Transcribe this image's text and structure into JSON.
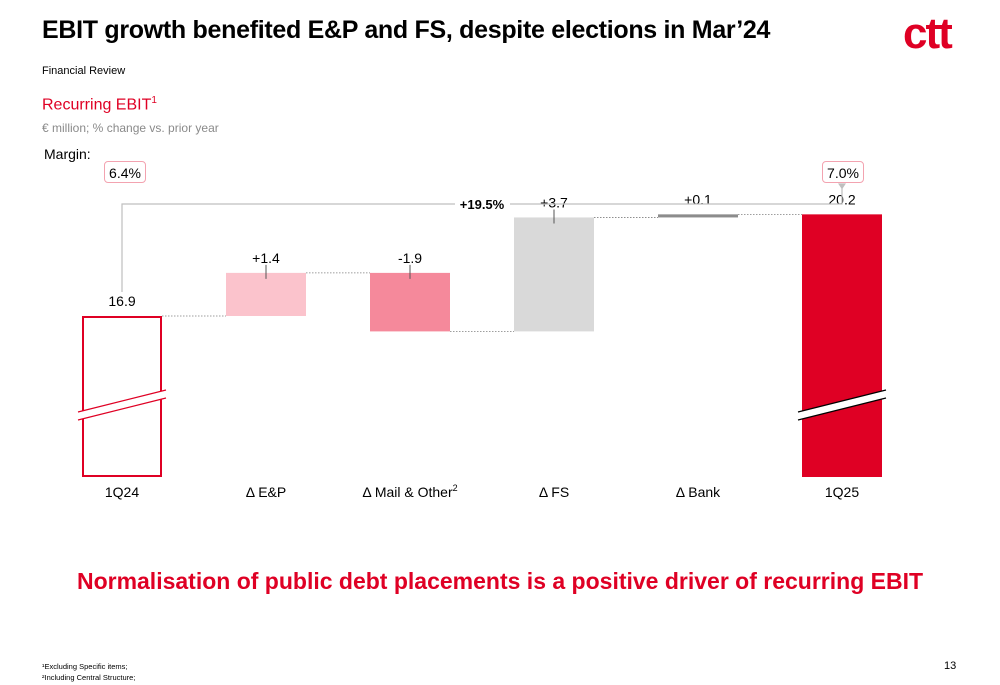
{
  "header": {
    "title": "EBIT growth benefited E&P and FS, despite elections in Mar’24",
    "logo_text": "ctt",
    "section_label": "Financial Review"
  },
  "chart_header": {
    "title": "Recurring EBIT",
    "title_sup": "1",
    "units": "€ million; % change vs. prior year",
    "margin_label": "Margin:",
    "margin_start": "6.4%",
    "margin_end": "7.0%",
    "growth_label": "+19.5%"
  },
  "chart_data": {
    "type": "waterfall",
    "categories": [
      "1Q24",
      "Δ E&P",
      "Δ Mail & Other",
      "Δ FS",
      "Δ Bank",
      "1Q25"
    ],
    "category_superscripts": [
      "",
      "",
      "2",
      "",
      "",
      ""
    ],
    "values": [
      16.9,
      1.4,
      -1.9,
      3.7,
      0.1,
      20.2
    ],
    "kinds": [
      "total",
      "delta",
      "delta",
      "delta",
      "delta",
      "total"
    ],
    "value_labels": [
      "16.9",
      "+1.4",
      "-1.9",
      "+3.7",
      "+0.1",
      "20.2"
    ],
    "axis_break": true,
    "colors": {
      "start_outline": "#df0024",
      "ep": "#fbc3cc",
      "mail": "#f5899b",
      "fs": "#d9d9d9",
      "bank": "#8c8c8c",
      "end": "#df0024",
      "connector": "#7f7f7f",
      "bracket": "#bfbfbf"
    }
  },
  "tagline": "Normalisation of public debt placements is a positive driver of recurring EBIT",
  "footnotes": [
    "¹Excluding Specific items;",
    "²Including Central Structure;"
  ],
  "page_number": "13"
}
